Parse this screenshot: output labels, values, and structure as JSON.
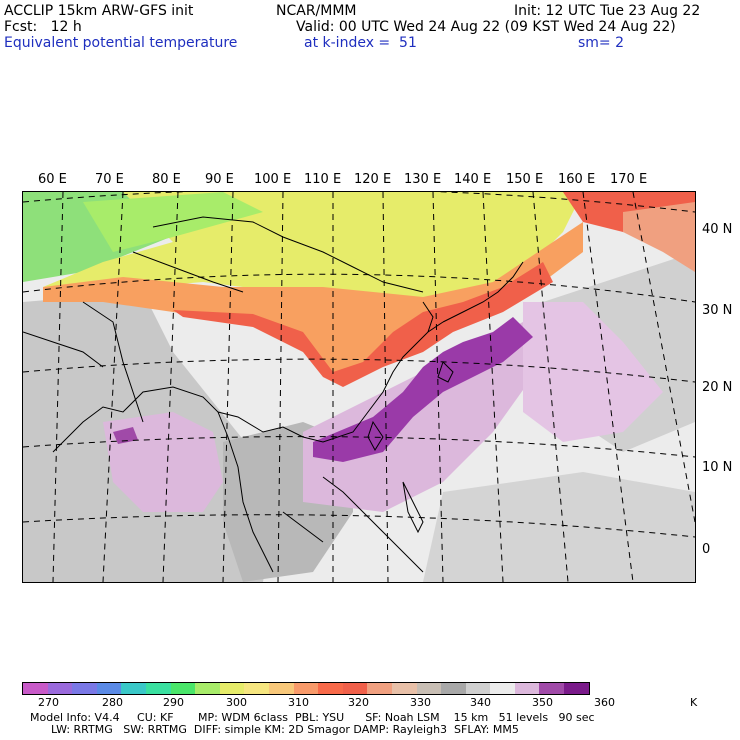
{
  "header": {
    "line1_left": "ACCLIP 15km ARW-GFS init",
    "line1_mid": "NCAR/MMM",
    "line1_right": "Init: 12 UTC Tue 23 Aug 22",
    "line2_left": "Fcst:   12 h",
    "line2_right": "Valid: 00 UTC Wed 24 Aug 22 (09 KST Wed 24 Aug 22)",
    "line3_left": "Equivalent potential temperature",
    "line3_mid": "at k-index =  51",
    "line3_right": "sm= 2"
  },
  "longitude_labels": [
    "60 E",
    "70 E",
    "80 E",
    "90 E",
    "100 E",
    "110 E",
    "120 E",
    "130 E",
    "140 E",
    "150 E",
    "160 E",
    "170 E"
  ],
  "latitude_labels": [
    "40 N",
    "30 N",
    "20 N",
    "10 N",
    "0"
  ],
  "colorbar": {
    "colors": [
      "#c85ac8",
      "#9a6adc",
      "#7a78e6",
      "#5a8ae6",
      "#3ac8c8",
      "#3ae0a0",
      "#4ae66a",
      "#a8ec6a",
      "#e6ec6a",
      "#f6e680",
      "#f8c87a",
      "#f89a6a",
      "#f86a4a",
      "#f0604a",
      "#f0a080",
      "#e8c0a8",
      "#c8beb4",
      "#a8a8a8",
      "#d0d0d0",
      "#ececec",
      "#dcb8dc",
      "#a04aa8",
      "#7a1a8a"
    ],
    "tick_labels": [
      "270",
      "280",
      "290",
      "300",
      "310",
      "320",
      "330",
      "340",
      "350",
      "360",
      "K"
    ]
  },
  "footer": {
    "line1": "Model Info: V4.4     CU: KF       MP: WDM 6class  PBL: YSU      SF: Noah LSM    15 km   51 levels   90 sec",
    "line2": "      LW: RRTMG   SW: RRTMG  DIFF: simple KM: 2D Smagor DAMP: Rayleigh3  SFLAY: MM5"
  }
}
